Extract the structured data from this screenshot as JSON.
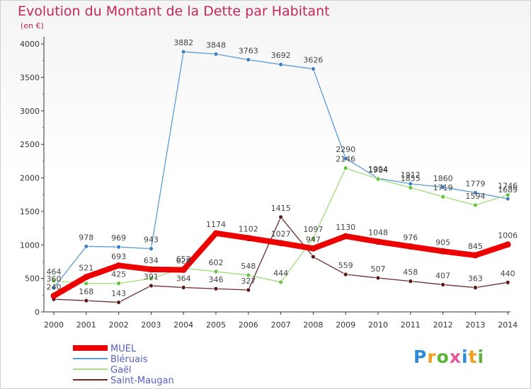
{
  "title": "Evolution du Montant de la Dette par Habitant",
  "subtitle": "(en €)",
  "logo": {
    "text": "Proxiti",
    "letter_colors": [
      "#2e8bd8",
      "#f0a020",
      "#5ab435",
      "#e85aa0",
      "#2e8bd8",
      "#f0a020",
      "#5ab435"
    ]
  },
  "chart_data": {
    "type": "line",
    "x": [
      2000,
      2001,
      2002,
      2003,
      2004,
      2005,
      2006,
      2007,
      2008,
      2009,
      2010,
      2011,
      2012,
      2013,
      2014
    ],
    "ylim": [
      0,
      4000
    ],
    "yticks": [
      0,
      500,
      1000,
      1500,
      2000,
      2500,
      3000,
      3500,
      4000
    ],
    "grid": false,
    "legend_position": "bottom-left",
    "series": [
      {
        "name": "Bléruais",
        "color": "#5b9bd5",
        "marker": "#3a7fc4",
        "values": [
          360,
          978,
          969,
          943,
          3882,
          3848,
          3763,
          3692,
          3626,
          2290,
          1994,
          1912,
          1860,
          1779,
          1689
        ]
      },
      {
        "name": "Gaël",
        "color": "#9fdc7a",
        "marker": "#66c23a",
        "values": [
          464,
          425,
          425,
          497,
          652,
          602,
          548,
          444,
          1097,
          2146,
          1984,
          1855,
          1719,
          1594,
          1746
        ]
      },
      {
        "name": "Saint-Maugan",
        "color": "#6b2a2a",
        "marker": "#5a1818",
        "values": [
          189,
          168,
          143,
          391,
          364,
          346,
          327,
          1415,
          823,
          559,
          507,
          458,
          407,
          363,
          440
        ]
      },
      {
        "name": "MUEL",
        "color": "#ee0000",
        "marker": "#ee0000",
        "values": [
          240,
          521,
          693,
          634,
          628,
          1174,
          1102,
          1027,
          947,
          1130,
          1048,
          976,
          905,
          845,
          1006
        ]
      }
    ],
    "data_labels": [
      {
        "series": "Bléruais",
        "labels": [
          "360",
          "978",
          "969",
          "943",
          "3882",
          "3848",
          "3763",
          "3692",
          "3626",
          "2290",
          "1994",
          "1912",
          "1860",
          "1779",
          "1689"
        ]
      },
      {
        "series": "Gaël",
        "labels": [
          "464",
          "",
          "425",
          "",
          "652",
          "602",
          "548",
          "444",
          "1097",
          "2146",
          "1984",
          "1855",
          "1719",
          "1594",
          "1746"
        ]
      },
      {
        "series": "Saint-Maugan",
        "labels": [
          "",
          "168",
          "143",
          "391",
          "364",
          "346",
          "327",
          "1415",
          "",
          "559",
          "507",
          "458",
          "407",
          "363",
          "440"
        ]
      },
      {
        "series": "MUEL",
        "labels": [
          "240",
          "521",
          "693",
          "634",
          "628",
          "1174",
          "1102",
          "1027",
          "947",
          "1130",
          "1048",
          "976",
          "905",
          "845",
          "1006"
        ]
      }
    ]
  }
}
